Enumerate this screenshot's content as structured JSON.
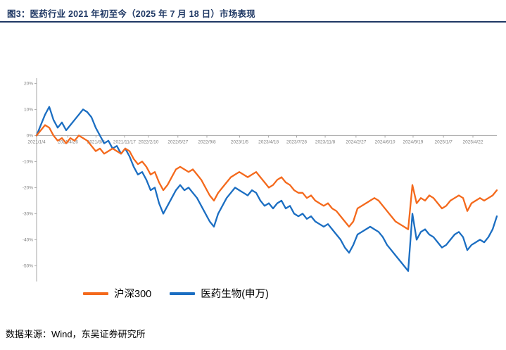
{
  "figure": {
    "title": "图3：医药行业 2021 年初至今（2025 年 7 月 18 日）市场表现",
    "source": "数据来源：Wind，东吴证券研究所",
    "accent_color": "#1f3864"
  },
  "chart_data": {
    "type": "line",
    "title": "医药行业 2021 年初至今（2025 年 7 月 18 日）市场表现",
    "xlabel": "",
    "ylabel": "",
    "grid": false,
    "legend_position": "bottom",
    "ylim": [
      -56,
      22
    ],
    "yticks": [
      20,
      10,
      0,
      -10,
      -20,
      -30,
      -40,
      -50
    ],
    "axis_color": "#a6a6a6",
    "tick_label_color": "#7f7f7f",
    "xticks": [
      {
        "label": "2021/1/4",
        "pos": 0.0
      },
      {
        "label": "2021/4/26",
        "pos": 0.068
      },
      {
        "label": "2021/8/6",
        "pos": 0.129
      },
      {
        "label": "2021/11/17",
        "pos": 0.191
      },
      {
        "label": "2022/2/10",
        "pos": 0.243
      },
      {
        "label": "2022/5/27",
        "pos": 0.307
      },
      {
        "label": "2022/9/8",
        "pos": 0.37
      },
      {
        "label": "2023/1/5",
        "pos": 0.441
      },
      {
        "label": "2023/4/18",
        "pos": 0.504
      },
      {
        "label": "2023/7/28",
        "pos": 0.565
      },
      {
        "label": "2023/11/8",
        "pos": 0.627
      },
      {
        "label": "2024/2/27",
        "pos": 0.694
      },
      {
        "label": "2024/6/10",
        "pos": 0.757
      },
      {
        "label": "2024/9/19",
        "pos": 0.818
      },
      {
        "label": "2025/1/7",
        "pos": 0.884
      },
      {
        "label": "2025/4/22",
        "pos": 0.948
      }
    ],
    "x_range_note": "values sampled at equal intervals from 2021/1/4 to 2025/7/18, unit: % change since 2021/1/4",
    "series": [
      {
        "name": "沪深300",
        "color": "#f4691c",
        "values": [
          0,
          2,
          4,
          3,
          0,
          -2,
          -1,
          -3,
          -1,
          -2,
          0,
          -1,
          -2,
          -4,
          -6,
          -5,
          -7,
          -6,
          -5,
          -6,
          -7,
          -5,
          -6,
          -9,
          -11,
          -10,
          -12,
          -15,
          -14,
          -18,
          -21,
          -19,
          -16,
          -13,
          -12,
          -13,
          -14,
          -13,
          -15,
          -17,
          -20,
          -23,
          -25,
          -22,
          -20,
          -18,
          -16,
          -15,
          -14,
          -15,
          -16,
          -15,
          -14,
          -16,
          -18,
          -20,
          -19,
          -17,
          -16,
          -18,
          -19,
          -21,
          -22,
          -22,
          -24,
          -23,
          -25,
          -26,
          -27,
          -26,
          -28,
          -29,
          -31,
          -33,
          -35,
          -33,
          -28,
          -27,
          -26,
          -25,
          -24,
          -25,
          -27,
          -29,
          -31,
          -33,
          -34,
          -35,
          -36,
          -19,
          -26,
          -24,
          -25,
          -23,
          -24,
          -26,
          -28,
          -27,
          -25,
          -24,
          -23,
          -24,
          -29,
          -26,
          -25,
          -24,
          -25,
          -24,
          -23,
          -21
        ]
      },
      {
        "name": "医药生物(申万)",
        "color": "#1b6ec2",
        "values": [
          0,
          4,
          8,
          11,
          6,
          3,
          5,
          2,
          4,
          6,
          8,
          10,
          9,
          7,
          3,
          0,
          -3,
          -2,
          -5,
          -4,
          -7,
          -5,
          -8,
          -12,
          -15,
          -14,
          -17,
          -21,
          -20,
          -26,
          -30,
          -27,
          -24,
          -21,
          -19,
          -21,
          -20,
          -22,
          -24,
          -27,
          -30,
          -33,
          -35,
          -30,
          -27,
          -24,
          -22,
          -20,
          -21,
          -22,
          -23,
          -21,
          -22,
          -25,
          -27,
          -26,
          -28,
          -26,
          -25,
          -28,
          -27,
          -30,
          -31,
          -30,
          -32,
          -31,
          -33,
          -34,
          -35,
          -34,
          -36,
          -38,
          -40,
          -43,
          -45,
          -42,
          -38,
          -37,
          -36,
          -35,
          -36,
          -37,
          -39,
          -42,
          -44,
          -46,
          -48,
          -50,
          -52,
          -30,
          -40,
          -37,
          -36,
          -38,
          -39,
          -41,
          -43,
          -42,
          -40,
          -38,
          -37,
          -39,
          -44,
          -42,
          -41,
          -40,
          -41,
          -39,
          -36,
          -31
        ]
      }
    ]
  }
}
